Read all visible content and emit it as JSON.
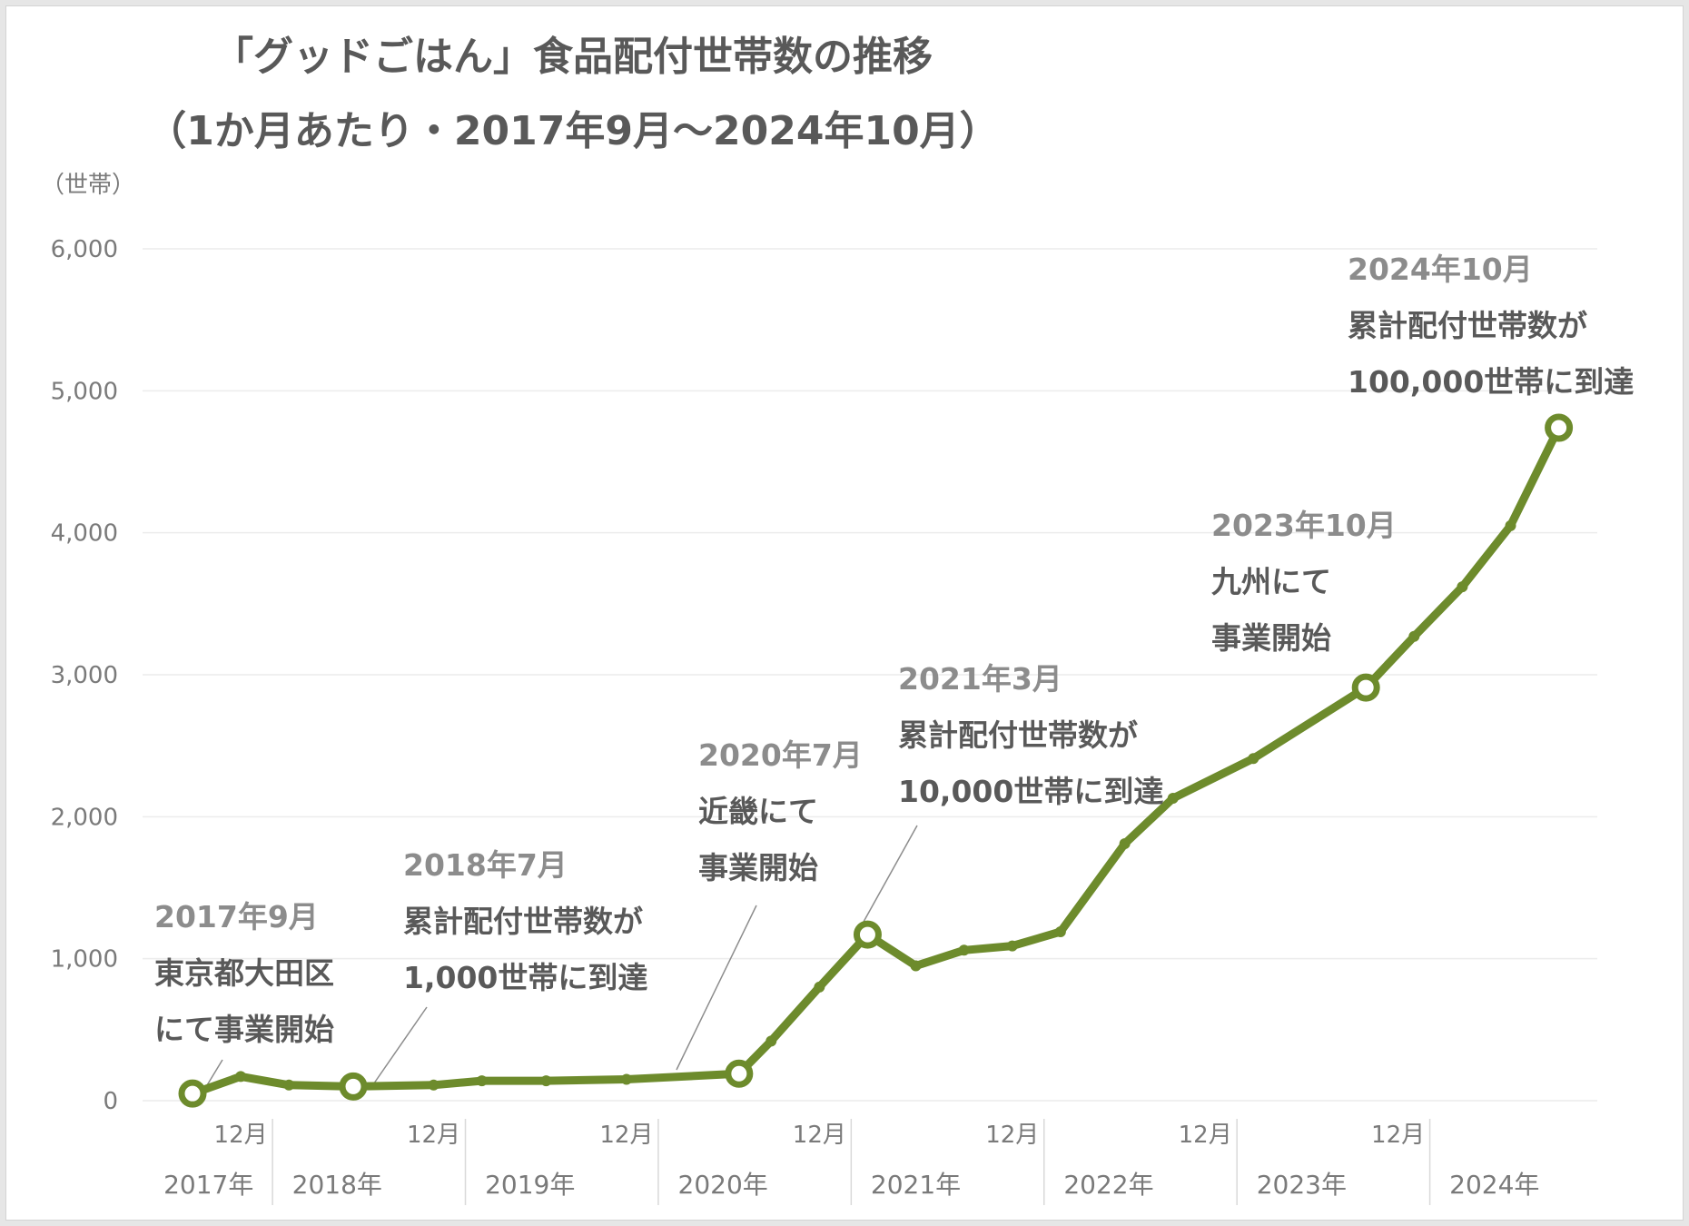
{
  "chart_data": {
    "type": "line",
    "title": [
      "「グッドごはん」食品配付世帯数の推移",
      "（1か月あたり・2017年9月～2024年10月）"
    ],
    "ylabel": "（世帯）",
    "ylim": [
      0,
      6000
    ],
    "yticks": [
      0,
      1000,
      2000,
      3000,
      4000,
      5000,
      6000
    ],
    "ytick_labels": [
      "0",
      "1,000",
      "2,000",
      "3,000",
      "4,000",
      "5,000",
      "6,000"
    ],
    "xlim": [
      "2017-09",
      "2024-12"
    ],
    "month_tick_label": "12月",
    "month_ticks": [
      "2017-12",
      "2018-12",
      "2019-12",
      "2020-12",
      "2021-12",
      "2022-12",
      "2023-12"
    ],
    "year_labels": [
      {
        "label": "2017年",
        "center": "2017-10"
      },
      {
        "label": "2018年",
        "center": "2018-06"
      },
      {
        "label": "2019年",
        "center": "2019-06"
      },
      {
        "label": "2020年",
        "center": "2020-06"
      },
      {
        "label": "2021年",
        "center": "2021-06"
      },
      {
        "label": "2022年",
        "center": "2022-06"
      },
      {
        "label": "2023年",
        "center": "2023-06"
      },
      {
        "label": "2024年",
        "center": "2024-06"
      }
    ],
    "year_dividers": [
      "2017-12",
      "2018-12",
      "2019-12",
      "2020-12",
      "2021-12",
      "2022-12",
      "2023-12"
    ],
    "grid": true,
    "color": "#6d8b2c",
    "series": [
      {
        "points": [
          {
            "x": "2017-09",
            "y": 50
          },
          {
            "x": "2017-12",
            "y": 170
          },
          {
            "x": "2018-03",
            "y": 110
          },
          {
            "x": "2018-07",
            "y": 100
          },
          {
            "x": "2018-12",
            "y": 110
          },
          {
            "x": "2019-03",
            "y": 140
          },
          {
            "x": "2019-07",
            "y": 140
          },
          {
            "x": "2019-12",
            "y": 150
          },
          {
            "x": "2020-07",
            "y": 190
          },
          {
            "x": "2020-09",
            "y": 420
          },
          {
            "x": "2020-12",
            "y": 800
          },
          {
            "x": "2021-03",
            "y": 1170
          },
          {
            "x": "2021-06",
            "y": 950
          },
          {
            "x": "2021-09",
            "y": 1060
          },
          {
            "x": "2021-12",
            "y": 1090
          },
          {
            "x": "2022-03",
            "y": 1190
          },
          {
            "x": "2022-07",
            "y": 1810
          },
          {
            "x": "2022-10",
            "y": 2130
          },
          {
            "x": "2023-03",
            "y": 2410
          },
          {
            "x": "2023-10",
            "y": 2910
          },
          {
            "x": "2024-01",
            "y": 3270
          },
          {
            "x": "2024-04",
            "y": 3620
          },
          {
            "x": "2024-07",
            "y": 4050
          },
          {
            "x": "2024-10",
            "y": 4740
          }
        ]
      }
    ],
    "highlight_points": [
      "2017-09",
      "2018-07",
      "2020-07",
      "2021-03",
      "2023-10",
      "2024-10"
    ],
    "annotations": [
      {
        "date": "2017年9月",
        "lines": [
          "東京都大田区",
          "にて事業開始"
        ],
        "point": "2017-09"
      },
      {
        "date": "2018年7月",
        "lines": [
          "累計配付世帯数が",
          "1,000世帯に到達"
        ],
        "point": "2018-07"
      },
      {
        "date": "2020年7月",
        "lines": [
          "近畿にて",
          "事業開始"
        ],
        "point": "2020-07"
      },
      {
        "date": "2021年3月",
        "lines": [
          "累計配付世帯数が",
          "10,000世帯に到達"
        ],
        "point": "2021-03"
      },
      {
        "date": "2023年10月",
        "lines": [
          "九州にて",
          "事業開始"
        ],
        "point": "2023-10"
      },
      {
        "date": "2024年10月",
        "lines": [
          "累計配付世帯数が",
          "100,000世帯に到達"
        ],
        "point": "2024-10"
      }
    ]
  }
}
